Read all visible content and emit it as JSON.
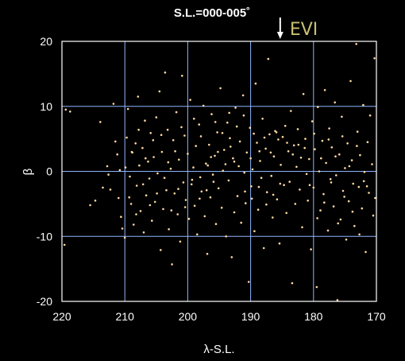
{
  "chart_data": {
    "type": "scatter",
    "title": "S.L.=000-005˚",
    "xlabel": "λ-S.L.",
    "ylabel": "β",
    "xlim": [
      220,
      170
    ],
    "ylim": [
      -20,
      20
    ],
    "x_ticks": [
      "220",
      "210",
      "200",
      "190",
      "180",
      "170"
    ],
    "y_ticks": [
      "20",
      "10",
      "0",
      "-10",
      "-20"
    ],
    "grid": true,
    "colors": {
      "background": "#000000",
      "points": "#ffd9a0",
      "grid": "#8fb4ff",
      "annotation": "#c8c070",
      "text": "#ffffff"
    },
    "annotation": {
      "text": "EVI",
      "x": 185.3
    },
    "points": [
      [
        219.4,
        9.5
      ],
      [
        218.7,
        9.2
      ],
      [
        219.6,
        -11.3
      ],
      [
        215.5,
        -5.2
      ],
      [
        214.7,
        -4.5
      ],
      [
        213.9,
        7.6
      ],
      [
        213.5,
        -2.5
      ],
      [
        212.8,
        0.8
      ],
      [
        212.6,
        -0.5
      ],
      [
        212.3,
        -2.8
      ],
      [
        211.8,
        10.4
      ],
      [
        211.5,
        4.6
      ],
      [
        211.2,
        2.6
      ],
      [
        211.0,
        -4.1
      ],
      [
        210.8,
        0.2
      ],
      [
        210.6,
        -7.0
      ],
      [
        210.0,
        -10.2
      ],
      [
        209.7,
        5.2
      ],
      [
        209.5,
        9.6
      ],
      [
        209.2,
        -0.8
      ],
      [
        209.0,
        -5.0
      ],
      [
        208.8,
        2.9
      ],
      [
        208.6,
        -8.2
      ],
      [
        208.3,
        4.3
      ],
      [
        208.1,
        -2.2
      ],
      [
        207.9,
        11.5
      ],
      [
        207.7,
        0.9
      ],
      [
        207.5,
        -6.1
      ],
      [
        207.2,
        3.6
      ],
      [
        207.0,
        -9.4
      ],
      [
        206.8,
        7.8
      ],
      [
        206.6,
        -3.7
      ],
      [
        206.3,
        1.5
      ],
      [
        206.1,
        -1.1
      ],
      [
        205.9,
        5.9
      ],
      [
        205.7,
        -7.6
      ],
      [
        205.4,
        2.2
      ],
      [
        205.2,
        -4.7
      ],
      [
        205.0,
        8.3
      ],
      [
        204.8,
        -0.3
      ],
      [
        204.5,
        12.3
      ],
      [
        204.3,
        -12.1
      ],
      [
        204.1,
        3.0
      ],
      [
        203.9,
        -5.8
      ],
      [
        203.6,
        15.2
      ],
      [
        203.4,
        -2.9
      ],
      [
        203.2,
        6.4
      ],
      [
        203.0,
        -8.9
      ],
      [
        202.7,
        0.4
      ],
      [
        202.5,
        -14.3
      ],
      [
        202.3,
        4.8
      ],
      [
        202.1,
        -3.4
      ],
      [
        201.8,
        9.1
      ],
      [
        201.6,
        -6.6
      ],
      [
        201.4,
        1.8
      ],
      [
        201.2,
        -10.8
      ],
      [
        200.9,
        14.7
      ],
      [
        200.7,
        -1.7
      ],
      [
        200.5,
        5.5
      ],
      [
        200.3,
        -4.4
      ],
      [
        200.0,
        2.7
      ],
      [
        199.8,
        -7.3
      ],
      [
        199.6,
        11.0
      ],
      [
        199.4,
        -2.0
      ],
      [
        199.1,
        0.6
      ],
      [
        198.9,
        -5.3
      ],
      [
        198.7,
        3.9
      ],
      [
        198.5,
        -9.7
      ],
      [
        198.2,
        7.2
      ],
      [
        198.0,
        -0.9
      ],
      [
        197.8,
        -3.1
      ],
      [
        197.5,
        10.1
      ],
      [
        197.3,
        -6.9
      ],
      [
        197.1,
        1.2
      ],
      [
        196.9,
        -12.7
      ],
      [
        196.6,
        4.1
      ],
      [
        196.4,
        -4.0
      ],
      [
        196.2,
        8.8
      ],
      [
        196.0,
        -0.5
      ],
      [
        195.7,
        2.4
      ],
      [
        195.5,
        -8.1
      ],
      [
        195.3,
        6.0
      ],
      [
        195.1,
        -2.6
      ],
      [
        194.8,
        12.8
      ],
      [
        194.6,
        -5.6
      ],
      [
        194.4,
        0.1
      ],
      [
        194.2,
        3.3
      ],
      [
        193.9,
        -10.0
      ],
      [
        193.7,
        7.5
      ],
      [
        193.5,
        -1.4
      ],
      [
        193.3,
        5.1
      ],
      [
        193.0,
        -13.2
      ],
      [
        192.8,
        2.0
      ],
      [
        192.6,
        -6.3
      ],
      [
        192.4,
        9.8
      ],
      [
        192.1,
        -3.8
      ],
      [
        191.9,
        0.8
      ],
      [
        191.7,
        4.6
      ],
      [
        191.5,
        -7.9
      ],
      [
        191.2,
        11.7
      ],
      [
        191.0,
        -0.2
      ],
      [
        190.8,
        -4.9
      ],
      [
        190.6,
        2.9
      ],
      [
        190.3,
        -17.0
      ],
      [
        190.1,
        6.7
      ],
      [
        189.9,
        -2.3
      ],
      [
        189.7,
        0.3
      ],
      [
        189.4,
        -9.2
      ],
      [
        189.2,
        13.5
      ],
      [
        189.0,
        4.4
      ],
      [
        188.8,
        -5.9
      ],
      [
        188.5,
        1.6
      ],
      [
        188.3,
        -1.0
      ],
      [
        188.1,
        8.1
      ],
      [
        187.9,
        -11.8
      ],
      [
        187.6,
        3.5
      ],
      [
        187.4,
        -3.2
      ],
      [
        187.2,
        17.3
      ],
      [
        187.0,
        5.7
      ],
      [
        186.7,
        -0.7
      ],
      [
        186.5,
        -7.1
      ],
      [
        186.3,
        2.3
      ],
      [
        186.1,
        6.2
      ],
      [
        185.8,
        -4.3
      ],
      [
        185.6,
        4.9
      ],
      [
        185.4,
        -11.1
      ],
      [
        185.2,
        1.0
      ],
      [
        184.9,
        5.3
      ],
      [
        184.7,
        -2.1
      ],
      [
        184.5,
        7.0
      ],
      [
        184.3,
        -6.4
      ],
      [
        184.0,
        3.1
      ],
      [
        183.8,
        -1.6
      ],
      [
        183.6,
        9.3
      ],
      [
        183.4,
        -17.2
      ],
      [
        183.1,
        4.0
      ],
      [
        182.9,
        -5.0
      ],
      [
        182.7,
        0.7
      ],
      [
        182.5,
        6.5
      ],
      [
        182.2,
        -2.8
      ],
      [
        182.0,
        2.1
      ],
      [
        181.8,
        -8.6
      ],
      [
        181.6,
        11.9
      ],
      [
        181.3,
        5.0
      ],
      [
        181.1,
        -0.4
      ],
      [
        180.9,
        -4.5
      ],
      [
        180.7,
        1.9
      ],
      [
        180.4,
        -12.0
      ],
      [
        180.2,
        7.7
      ],
      [
        180.0,
        -2.5
      ],
      [
        179.8,
        3.4
      ],
      [
        179.5,
        -17.8
      ],
      [
        179.3,
        9.9
      ],
      [
        179.1,
        0.0
      ],
      [
        178.9,
        -6.0
      ],
      [
        178.6,
        4.7
      ],
      [
        178.4,
        -3.5
      ],
      [
        178.2,
        12.5
      ],
      [
        178.0,
        1.3
      ],
      [
        177.7,
        -9.1
      ],
      [
        177.5,
        6.6
      ],
      [
        177.3,
        -1.2
      ],
      [
        177.1,
        3.7
      ],
      [
        176.8,
        -5.4
      ],
      [
        176.6,
        10.6
      ],
      [
        176.4,
        -0.6
      ],
      [
        176.2,
        -19.8
      ],
      [
        175.9,
        2.6
      ],
      [
        175.7,
        -7.4
      ],
      [
        175.5,
        8.4
      ],
      [
        175.3,
        -3.0
      ],
      [
        175.0,
        0.5
      ],
      [
        174.8,
        -10.5
      ],
      [
        174.6,
        4.3
      ],
      [
        174.4,
        -4.6
      ],
      [
        174.1,
        13.9
      ],
      [
        173.9,
        1.7
      ],
      [
        173.7,
        -1.9
      ],
      [
        173.5,
        -8.4
      ],
      [
        173.2,
        19.6
      ],
      [
        173.0,
        6.1
      ],
      [
        172.8,
        -2.4
      ],
      [
        172.6,
        2.5
      ],
      [
        172.3,
        -5.7
      ],
      [
        172.1,
        10.2
      ],
      [
        171.9,
        -0.1
      ],
      [
        171.7,
        -12.4
      ],
      [
        171.4,
        4.5
      ],
      [
        171.2,
        -3.3
      ],
      [
        171.0,
        8.6
      ],
      [
        170.7,
        1.1
      ],
      [
        170.5,
        -6.8
      ],
      [
        170.3,
        17.4
      ],
      [
        170.2,
        -4.1
      ],
      [
        192.6,
        1.5
      ],
      [
        193.2,
        3.8
      ],
      [
        194.0,
        1.1
      ],
      [
        195.2,
        3.0
      ],
      [
        196.3,
        2.2
      ],
      [
        189.5,
        5.8
      ],
      [
        188.6,
        3.1
      ],
      [
        187.8,
        5.2
      ],
      [
        186.8,
        2.9
      ],
      [
        185.9,
        6.0
      ],
      [
        184.2,
        4.4
      ],
      [
        183.3,
        2.6
      ],
      [
        182.4,
        4.1
      ],
      [
        181.4,
        3.6
      ],
      [
        190.9,
        -3.1
      ],
      [
        189.8,
        -4.2
      ],
      [
        188.7,
        -2.4
      ],
      [
        187.5,
        -5.1
      ],
      [
        186.4,
        -3.6
      ],
      [
        185.3,
        -1.9
      ],
      [
        195.9,
        -1.6
      ],
      [
        197.0,
        -2.9
      ],
      [
        198.1,
        -4.2
      ],
      [
        199.3,
        -1.3
      ],
      [
        200.4,
        -5.5
      ],
      [
        201.5,
        -2.7
      ],
      [
        202.6,
        -6.0
      ],
      [
        203.7,
        -1.0
      ],
      [
        204.9,
        -3.4
      ],
      [
        206.0,
        -5.2
      ],
      [
        207.1,
        -2.0
      ],
      [
        208.2,
        -6.6
      ],
      [
        209.3,
        -4.0
      ],
      [
        210.4,
        -8.8
      ],
      [
        205.5,
        4.8
      ],
      [
        206.7,
        2.0
      ],
      [
        207.8,
        6.4
      ],
      [
        208.9,
        3.0
      ],
      [
        209.9,
        0.6
      ],
      [
        201.0,
        6.8
      ],
      [
        202.0,
        3.1
      ],
      [
        203.1,
        1.4
      ],
      [
        204.2,
        5.6
      ],
      [
        199.0,
        8.1
      ],
      [
        197.9,
        5.4
      ],
      [
        196.8,
        0.9
      ],
      [
        195.6,
        7.6
      ],
      [
        194.5,
        5.9
      ],
      [
        193.4,
        9.0
      ],
      [
        192.2,
        6.9
      ],
      [
        191.1,
        8.6
      ],
      [
        190.0,
        2.0
      ],
      [
        179.9,
        5.8
      ],
      [
        178.8,
        2.0
      ],
      [
        177.6,
        4.9
      ],
      [
        176.5,
        2.3
      ],
      [
        175.4,
        5.4
      ],
      [
        174.3,
        0.8
      ],
      [
        173.1,
        3.9
      ],
      [
        172.0,
        -1.5
      ],
      [
        180.6,
        -2.1
      ],
      [
        179.4,
        -7.2
      ],
      [
        178.3,
        -4.8
      ],
      [
        177.2,
        -1.7
      ],
      [
        176.1,
        -8.0
      ],
      [
        175.1,
        -3.9
      ],
      [
        173.8,
        -6.2
      ],
      [
        172.7,
        -9.7
      ],
      [
        171.5,
        -2.3
      ]
    ]
  }
}
